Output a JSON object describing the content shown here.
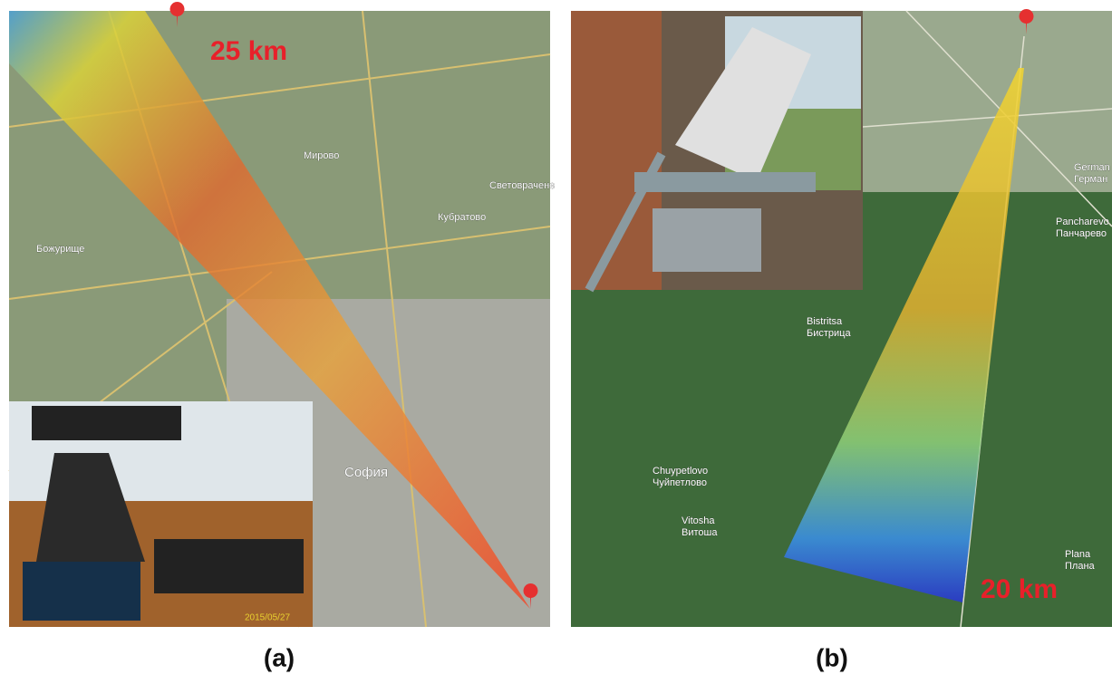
{
  "panels": [
    {
      "label": "(a)",
      "distance": "25 km",
      "photo_date": "2015/05/27",
      "place_labels": [
        "София",
        "Мирово",
        "Кубратово",
        "Божурище",
        "Световрачене"
      ]
    },
    {
      "label": "(b)",
      "distance": "20 km",
      "place_labels": [
        "Chuypetlovo",
        "Чуйпетлово",
        "Vitosha",
        "Витоша",
        "Bistritsa",
        "Бистрица",
        "Pancharevo",
        "Панчарево",
        "German",
        "Герман",
        "Plana",
        "Плана"
      ]
    }
  ]
}
